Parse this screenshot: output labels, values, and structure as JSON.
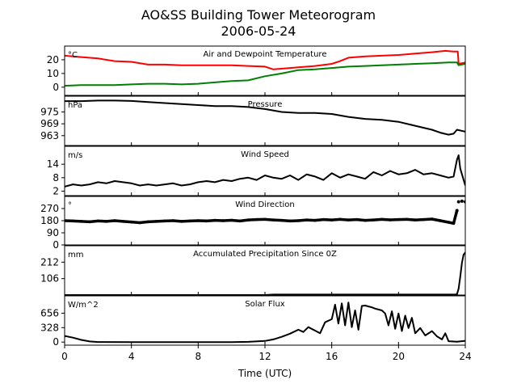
{
  "figure": {
    "title_line1": "AO&SS Building Tower Meteorogram",
    "title_line2": "2006-05-24",
    "xlabel": "Time (UTC)",
    "x_ticks": [
      0,
      4,
      8,
      12,
      16,
      20,
      24
    ],
    "xlim": [
      0,
      24
    ]
  },
  "chart_data": [
    {
      "type": "line",
      "title": "Air and Dewpoint Temperature",
      "ylabel": "°C",
      "ylim": [
        -6,
        30
      ],
      "y_ticks": [
        0,
        10,
        20
      ],
      "series": [
        {
          "color": "#ff0000",
          "x": [
            0,
            1,
            2,
            3,
            4,
            5,
            6,
            7,
            8,
            9,
            10,
            11,
            12,
            12.5,
            13,
            14,
            15,
            16,
            16.5,
            17,
            18,
            19,
            20,
            21,
            22,
            22.8,
            23.3,
            23.55,
            23.6,
            24
          ],
          "y": [
            23,
            22,
            21,
            19,
            18.5,
            16.5,
            16.5,
            16,
            16,
            16,
            16,
            15.5,
            15,
            13,
            13.5,
            14.5,
            15.5,
            17,
            19,
            21.5,
            22.5,
            23,
            23.5,
            24.5,
            25.5,
            26.5,
            26,
            26,
            17,
            18
          ]
        },
        {
          "color": "#008000",
          "x": [
            0,
            1,
            2,
            3,
            4,
            5,
            6,
            7,
            8,
            9,
            10,
            11,
            12,
            13,
            14,
            15,
            16,
            17,
            18,
            19,
            20,
            21,
            22,
            23,
            23.5,
            23.6,
            24
          ],
          "y": [
            1,
            1.5,
            1.5,
            1.5,
            2,
            2.5,
            2.5,
            2,
            2.5,
            3.5,
            4.5,
            5,
            8,
            10,
            12.5,
            13,
            14,
            15,
            15.5,
            16,
            16.5,
            17,
            17.5,
            18,
            18,
            16,
            17
          ]
        }
      ]
    },
    {
      "type": "line",
      "title": "Pressure",
      "ylabel": "hPa",
      "ylim": [
        958,
        983
      ],
      "y_ticks": [
        963,
        969,
        975
      ],
      "series": [
        {
          "color": "#000000",
          "x": [
            0,
            1,
            2,
            3,
            4,
            5,
            6,
            7,
            8,
            9,
            10,
            11,
            12,
            13,
            14,
            15,
            16,
            17,
            18,
            19,
            20,
            21,
            22,
            22.5,
            23,
            23.3,
            23.5,
            24
          ],
          "y": [
            980.5,
            980.5,
            980.8,
            980.8,
            980.6,
            980,
            979.5,
            979,
            978.5,
            978,
            978,
            977.5,
            976.5,
            975,
            974.5,
            974.5,
            974,
            972.5,
            971.5,
            971,
            970,
            968,
            966,
            964.5,
            963.5,
            964,
            966,
            965
          ]
        }
      ]
    },
    {
      "type": "line",
      "title": "Wind Speed",
      "ylabel": "m/s",
      "ylim": [
        0,
        22
      ],
      "y_ticks": [
        2,
        8,
        14
      ],
      "series": [
        {
          "color": "#000000",
          "x": [
            0,
            0.5,
            1,
            1.5,
            2,
            2.5,
            3,
            3.5,
            4,
            4.5,
            5,
            5.5,
            6,
            6.5,
            7,
            7.5,
            8,
            8.5,
            9,
            9.5,
            10,
            10.5,
            11,
            11.5,
            12,
            12.5,
            13,
            13.5,
            14,
            14.5,
            15,
            15.5,
            16,
            16.5,
            17,
            17.5,
            18,
            18.5,
            19,
            19.5,
            20,
            20.5,
            21,
            21.5,
            22,
            22.5,
            23,
            23.3,
            23.5,
            23.6,
            23.7,
            24
          ],
          "y": [
            4,
            5,
            4.5,
            5,
            6,
            5.5,
            6.5,
            6,
            5.5,
            4.5,
            5,
            4.5,
            5,
            5.5,
            4.5,
            5,
            6,
            6.5,
            6,
            7,
            6.5,
            7.5,
            8,
            7,
            9,
            8,
            7.5,
            9,
            7,
            9.5,
            8.5,
            7,
            10,
            8,
            9.5,
            8.5,
            7.5,
            10.5,
            9,
            11,
            9.5,
            10,
            11.5,
            9.5,
            10,
            9,
            8,
            8.5,
            16,
            18,
            12,
            4.5
          ]
        }
      ]
    },
    {
      "type": "scatter",
      "title": "Wind Direction",
      "ylabel": "°",
      "ylim": [
        0,
        360
      ],
      "y_ticks": [
        0,
        90,
        180,
        270
      ],
      "series": [
        {
          "color": "#000000",
          "x": [
            0,
            0.5,
            1,
            1.5,
            2,
            2.5,
            3,
            3.5,
            4,
            4.5,
            5,
            5.5,
            6,
            6.5,
            7,
            7.5,
            8,
            8.5,
            9,
            9.5,
            10,
            10.5,
            11,
            11.5,
            12,
            12.5,
            13,
            13.5,
            14,
            14.5,
            15,
            15.5,
            16,
            16.5,
            17,
            17.5,
            18,
            18.5,
            19,
            19.5,
            20,
            20.5,
            21,
            21.5,
            22,
            22.5,
            23,
            23.3,
            23.5,
            23.6,
            23.8,
            24
          ],
          "y": [
            180,
            178,
            175,
            172,
            178,
            175,
            180,
            175,
            170,
            165,
            172,
            175,
            178,
            180,
            175,
            178,
            180,
            178,
            182,
            180,
            183,
            178,
            185,
            188,
            190,
            185,
            182,
            178,
            180,
            185,
            182,
            188,
            185,
            190,
            185,
            188,
            182,
            185,
            190,
            186,
            188,
            190,
            185,
            188,
            192,
            180,
            168,
            160,
            255,
            320,
            325,
            320
          ]
        }
      ]
    },
    {
      "type": "line",
      "title": "Accumulated Precipitation Since 0Z",
      "ylabel": "mm",
      "ylim": [
        0,
        318
      ],
      "y_ticks": [
        106,
        212
      ],
      "series": [
        {
          "color": "#000000",
          "x": [
            0,
            12,
            12.5,
            23.4,
            23.5,
            23.6,
            23.7,
            23.8,
            23.9,
            24
          ],
          "y": [
            0,
            0,
            3,
            3,
            5,
            40,
            120,
            210,
            260,
            275
          ]
        }
      ]
    },
    {
      "type": "line",
      "title": "Solar Flux",
      "ylabel": "W/m^2",
      "ylim": [
        -70,
        1050
      ],
      "y_ticks": [
        0,
        328,
        656
      ],
      "series": [
        {
          "color": "#000000",
          "x": [
            0,
            0.5,
            1,
            1.5,
            2,
            4,
            6,
            8,
            10,
            11,
            12,
            12.5,
            13,
            13.5,
            14,
            14.3,
            14.6,
            15,
            15.3,
            15.6,
            16,
            16.2,
            16.4,
            16.6,
            16.8,
            17,
            17.2,
            17.4,
            17.6,
            17.8,
            18,
            18.2,
            18.4,
            18.6,
            18.8,
            19,
            19.2,
            19.4,
            19.6,
            19.8,
            20,
            20.2,
            20.4,
            20.6,
            20.8,
            21,
            21.3,
            21.6,
            22,
            22.3,
            22.6,
            22.8,
            23,
            23.5,
            24
          ],
          "y": [
            140,
            100,
            50,
            15,
            2,
            0,
            0,
            0,
            0,
            5,
            25,
            60,
            120,
            190,
            280,
            230,
            340,
            260,
            200,
            450,
            520,
            850,
            420,
            880,
            380,
            900,
            340,
            720,
            280,
            820,
            830,
            810,
            790,
            760,
            740,
            720,
            650,
            380,
            700,
            300,
            650,
            250,
            600,
            320,
            550,
            200,
            320,
            150,
            250,
            130,
            60,
            200,
            20,
            8,
            30
          ]
        }
      ]
    }
  ]
}
